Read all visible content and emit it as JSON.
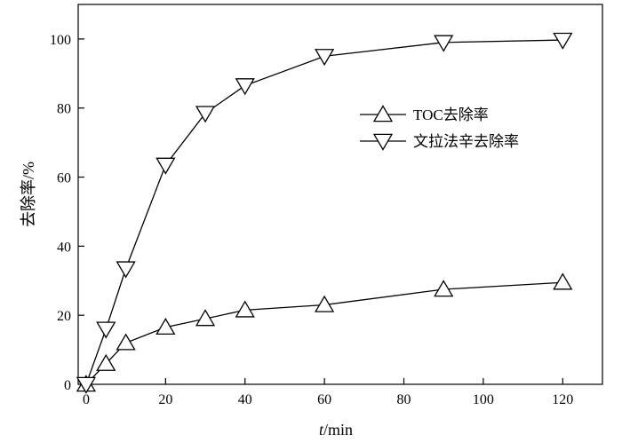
{
  "chart_data": {
    "type": "line",
    "xlabel_italic": "t",
    "xlabel_rest": "/min",
    "ylabel": "去除率/%",
    "xlim": [
      -2,
      130
    ],
    "ylim": [
      0,
      110
    ],
    "xticks": [
      0,
      20,
      40,
      60,
      80,
      100,
      120
    ],
    "yticks": [
      0,
      20,
      40,
      60,
      80,
      100
    ],
    "grid": false,
    "legend_position": "center-right",
    "series": [
      {
        "name": "TOC去除率",
        "marker": "triangle-up",
        "x": [
          0,
          5,
          10,
          20,
          30,
          40,
          60,
          90,
          120
        ],
        "y": [
          0,
          6,
          12,
          16.5,
          19,
          21.5,
          23,
          27.5,
          29.5
        ]
      },
      {
        "name": "文拉法辛去除率",
        "marker": "triangle-down",
        "x": [
          0,
          5,
          10,
          20,
          30,
          40,
          60,
          90,
          120
        ],
        "y": [
          0,
          16,
          33.5,
          63.5,
          78.5,
          86.5,
          95,
          99,
          99.7
        ]
      }
    ],
    "colors": {
      "line": "#000000",
      "marker_fill": "#ffffff"
    }
  }
}
